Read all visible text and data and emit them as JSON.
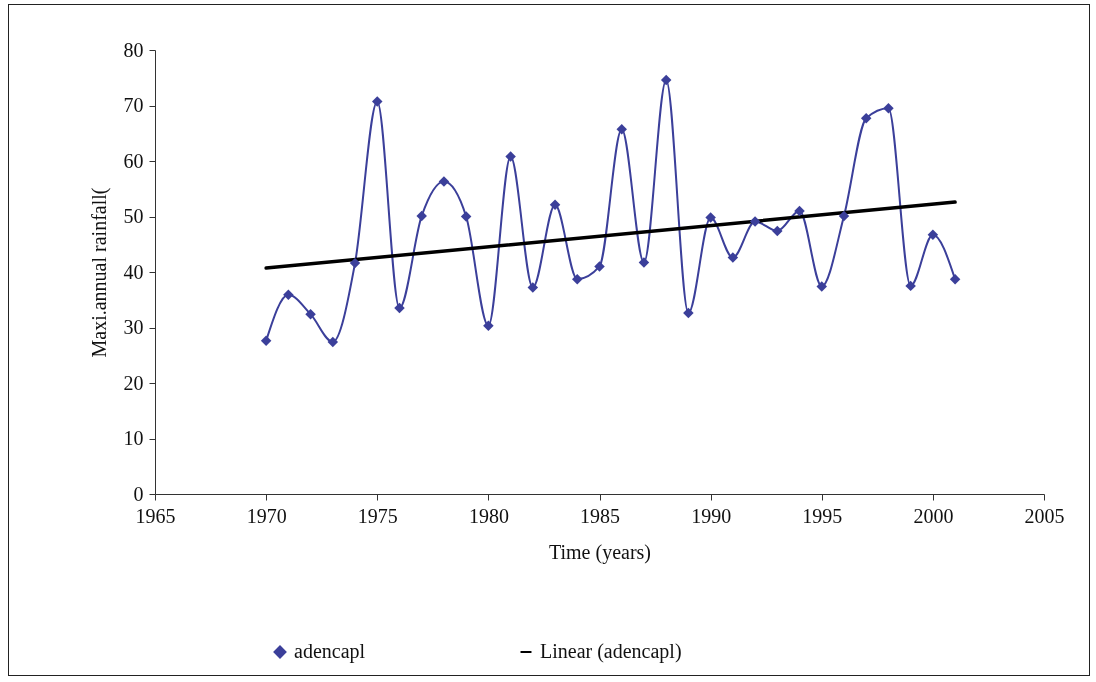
{
  "chart_data": {
    "type": "line",
    "xlabel": "Time (years)",
    "ylabel": "Maxi.annual rainfall(",
    "x": [
      1970,
      1971,
      1972,
      1973,
      1974,
      1975,
      1976,
      1977,
      1978,
      1979,
      1980,
      1981,
      1982,
      1983,
      1984,
      1985,
      1986,
      1987,
      1988,
      1989,
      1990,
      1991,
      1992,
      1993,
      1994,
      1995,
      1996,
      1997,
      1998,
      1999,
      2000,
      2001
    ],
    "series": [
      {
        "name": "adencapl",
        "color": "#3b3f9a",
        "marker": "diamond",
        "values": [
          27.6,
          35.9,
          32.4,
          27.4,
          41.6,
          70.7,
          33.5,
          50.1,
          56.3,
          50,
          30.3,
          60.8,
          37.2,
          52.1,
          38.7,
          41,
          65.7,
          41.7,
          74.6,
          32.6,
          49.8,
          42.6,
          49.1,
          47.4,
          51,
          37.4,
          50.1,
          67.7,
          69.5,
          37.5,
          46.7,
          38.7
        ]
      },
      {
        "name": "Linear (adencapl)",
        "type": "line",
        "color": "#000000",
        "marker": "none",
        "x": [
          1970,
          2001
        ],
        "values": [
          40.7,
          52.6
        ]
      }
    ],
    "xlim": [
      1965,
      2005
    ],
    "xticks": [
      1965,
      1970,
      1975,
      1980,
      1985,
      1990,
      1995,
      2000,
      2005
    ],
    "ylim": [
      0,
      80
    ],
    "yticks": [
      0,
      10,
      20,
      30,
      40,
      50,
      60,
      70,
      80
    ],
    "grid": false,
    "legend": "bottom",
    "line_style": "solid"
  }
}
